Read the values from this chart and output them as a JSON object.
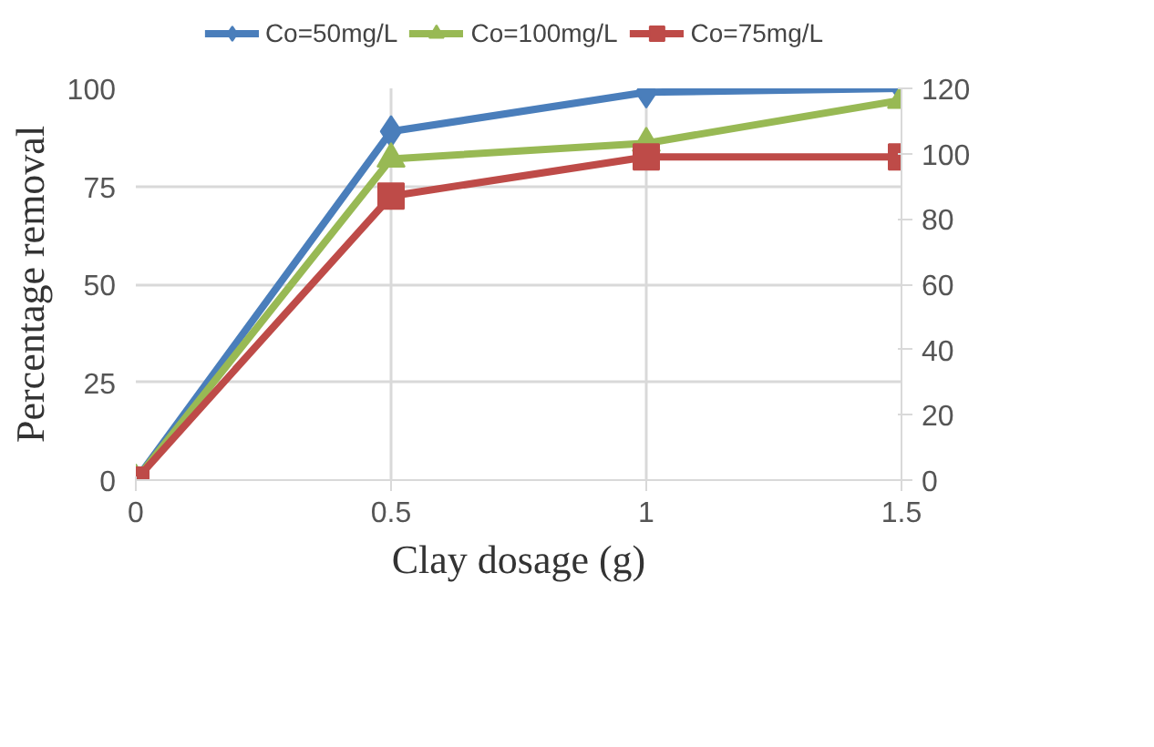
{
  "chart_data": {
    "type": "line",
    "xlabel": "Clay dosage (g)",
    "ylabel": "Percentage removal",
    "x": [
      0,
      0.5,
      1,
      1.5
    ],
    "xlim": [
      0,
      1.5
    ],
    "xticks": [
      0,
      0.5,
      1,
      1.5
    ],
    "ylim": [
      0,
      100
    ],
    "yticks": [
      0,
      25,
      50,
      75,
      100
    ],
    "y2lim": [
      0,
      120
    ],
    "y2ticks": [
      0,
      20,
      40,
      60,
      80,
      100,
      120
    ],
    "grid": true,
    "legend": "top",
    "series": [
      {
        "name": "Co=50mg/L",
        "color": "#4a7ebb",
        "marker": "diamond",
        "values": [
          0,
          89,
          99,
          100
        ]
      },
      {
        "name": "Co=100mg/L",
        "color": "#98b954",
        "marker": "triangle",
        "values": [
          0,
          82,
          86,
          97
        ]
      },
      {
        "name": "Co=75mg/L",
        "color": "#be4b48",
        "marker": "square",
        "axis": "y2",
        "values": [
          0,
          87,
          99,
          99
        ]
      }
    ]
  }
}
